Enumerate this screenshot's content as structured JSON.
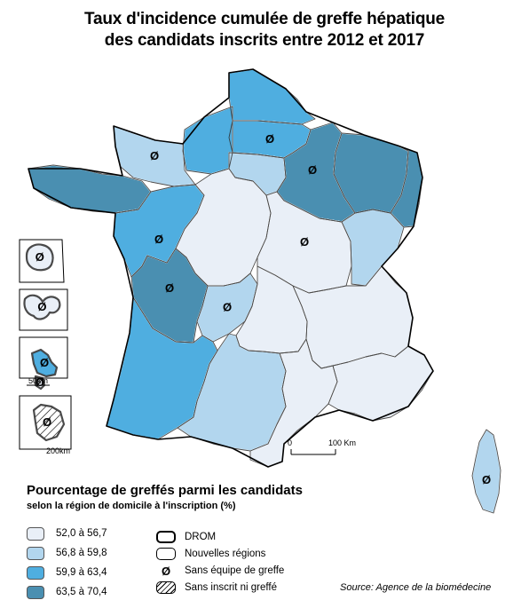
{
  "title_line1": "Taux d'incidence cumulée de greffe hépatique",
  "title_line2": "des candidats inscrits entre 2012 et 2017",
  "legend": {
    "title": "Pourcentage de greffés parmi les candidats",
    "subtitle": "selon la région de domicile à l'inscription (%)",
    "classes": [
      {
        "label": "52,0 à 56,7",
        "color": "#e9eff7"
      },
      {
        "label": "56,8 à 59,8",
        "color": "#b2d6ee"
      },
      {
        "label": "59,9 à 63,4",
        "color": "#4faee0"
      },
      {
        "label": "63,5 à 70,4",
        "color": "#4a8fb1"
      }
    ],
    "symbols": [
      {
        "label": "DROM",
        "icon": "thick-outline-icon"
      },
      {
        "label": "Nouvelles régions",
        "icon": "medium-outline-icon"
      },
      {
        "label": "Sans équipe de greffe",
        "icon": "empty-set-icon"
      },
      {
        "label": "Sans inscrit ni greffé",
        "icon": "hatched-box-icon"
      }
    ]
  },
  "scale": {
    "zero": "0",
    "value": "100 Km"
  },
  "drom_scales": [
    "50km",
    "200km"
  ],
  "no_team_symbol": "Ø",
  "source": "Source: Agence de la biomédecine",
  "regions": [
    {
      "id": "haute-normandie",
      "class": 2,
      "no_team": false
    },
    {
      "id": "nord-pas-de-calais",
      "class": 2,
      "no_team": false
    },
    {
      "id": "picardie",
      "class": 2,
      "no_team": true
    },
    {
      "id": "basse-normandie",
      "class": 1,
      "no_team": true
    },
    {
      "id": "bretagne",
      "class": 3,
      "no_team": false
    },
    {
      "id": "pays-de-la-loire",
      "class": 2,
      "no_team": true
    },
    {
      "id": "centre",
      "class": 0,
      "no_team": false
    },
    {
      "id": "ile-de-france",
      "class": 1,
      "no_team": false
    },
    {
      "id": "champagne-ardenne",
      "class": 3,
      "no_team": true
    },
    {
      "id": "lorraine",
      "class": 3,
      "no_team": false
    },
    {
      "id": "alsace",
      "class": 3,
      "no_team": false
    },
    {
      "id": "bourgogne",
      "class": 0,
      "no_team": true
    },
    {
      "id": "franche-comte",
      "class": 1,
      "no_team": false
    },
    {
      "id": "poitou-charentes",
      "class": 3,
      "no_team": true
    },
    {
      "id": "limousin",
      "class": 1,
      "no_team": true
    },
    {
      "id": "auvergne",
      "class": 0,
      "no_team": false
    },
    {
      "id": "rhone-alpes",
      "class": 0,
      "no_team": false
    },
    {
      "id": "aquitaine",
      "class": 2,
      "no_team": false
    },
    {
      "id": "midi-pyrenees",
      "class": 1,
      "no_team": false
    },
    {
      "id": "languedoc-roussillon",
      "class": 0,
      "no_team": false
    },
    {
      "id": "paca",
      "class": 0,
      "no_team": false
    },
    {
      "id": "corse",
      "class": 1,
      "no_team": true
    },
    {
      "id": "guadeloupe",
      "class": 0,
      "no_team": true
    },
    {
      "id": "martinique",
      "class": 2,
      "no_team": true
    },
    {
      "id": "guyane",
      "class": 3,
      "no_team": true
    },
    {
      "id": "la-reunion",
      "class": 0,
      "no_team": true
    },
    {
      "id": "mayotte",
      "class": 0,
      "no_team": true
    }
  ]
}
